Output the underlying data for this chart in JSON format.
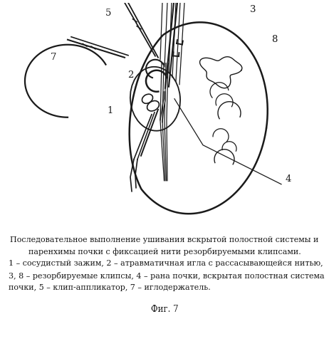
{
  "fig_label": "Фиг. 7",
  "cap1": "Последовательное выполнение ушивания вскрытой полостной системы и",
  "cap2": "паренхимы почки с фиксацией нити резорбируемыми клипсами.",
  "cap3": "1 – сосудистый зажим, 2 – атравматичная игла с рассасывающейся нитью,",
  "cap4": "3, 8 – резорбируемые клипсы, 4 – рана почки, вскрытая полостная система",
  "cap5": "почки, 5 – клип-аппликатор, 7 – иглодержатель.",
  "bg": "#ffffff",
  "ink": "#1a1a1a",
  "figsize": [
    4.62,
    5.0
  ],
  "dpi": 100
}
